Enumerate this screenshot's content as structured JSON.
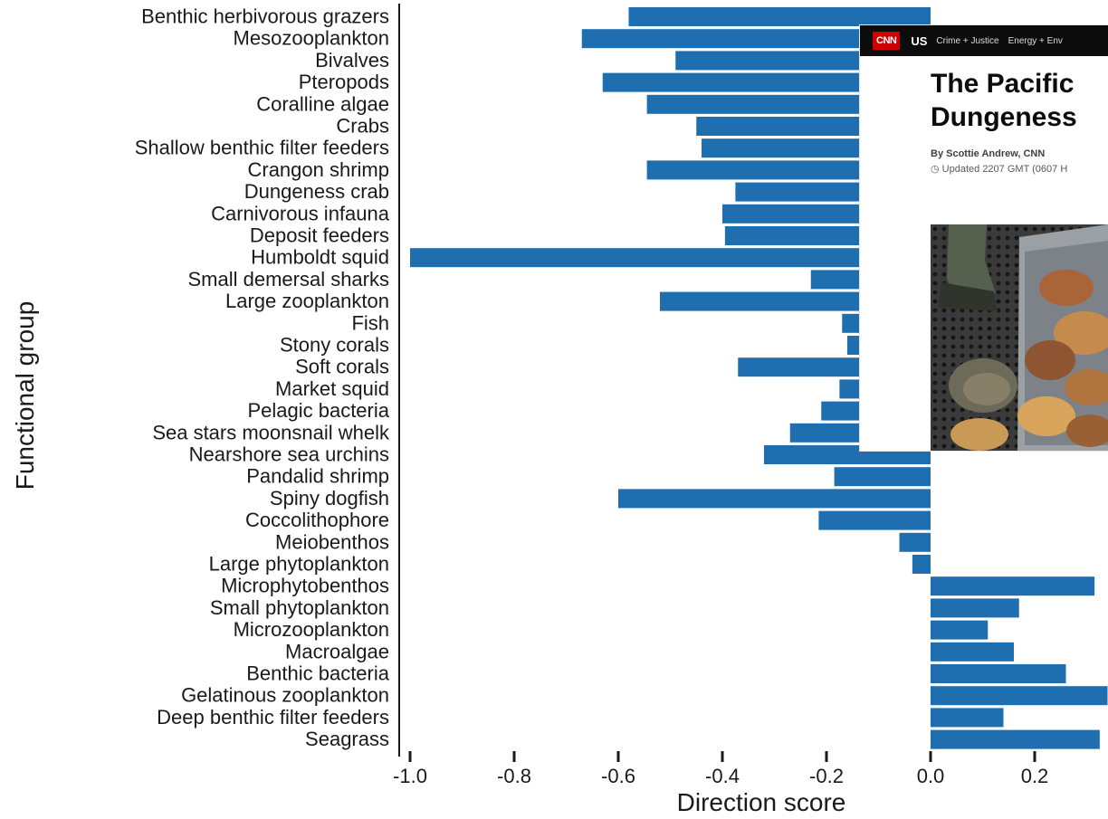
{
  "chart_data": {
    "type": "bar",
    "orientation": "horizontal",
    "ylabel": "Functional group",
    "xlabel": "Direction score",
    "xlim": [
      -1.0,
      0.35
    ],
    "xticks": [
      "-1.0",
      "-0.8",
      "-0.6",
      "-0.4",
      "-0.2",
      "0.0",
      "0.2"
    ],
    "grid": false,
    "bar_color": "#1f6fb0",
    "categories": [
      "Benthic herbivorous grazers",
      "Mesozooplankton",
      "Bivalves",
      "Pteropods",
      "Coralline algae",
      "Crabs",
      "Shallow benthic filter feeders",
      "Crangon shrimp",
      "Dungeness crab",
      "Carnivorous infauna",
      "Deposit feeders",
      "Humboldt squid",
      "Small demersal sharks",
      "Large zooplankton",
      "Fish",
      "Stony corals",
      "Soft corals",
      "Market squid",
      "Pelagic bacteria",
      "Sea stars moonsnail whelk",
      "Nearshore sea urchins",
      "Pandalid shrimp",
      "Spiny dogfish",
      "Coccolithophore",
      "Meiobenthos",
      "Large phytoplankton",
      "Microphytobenthos",
      "Small phytoplankton",
      "Microzooplankton",
      "Macroalgae",
      "Benthic bacteria",
      "Gelatinous zooplankton",
      "Deep benthic filter feeders",
      "Seagrass"
    ],
    "values": [
      -0.58,
      -0.67,
      -0.49,
      -0.63,
      -0.545,
      -0.45,
      -0.44,
      -0.545,
      -0.375,
      -0.4,
      -0.395,
      -1.0,
      -0.23,
      -0.52,
      -0.17,
      -0.16,
      -0.37,
      -0.175,
      -0.21,
      -0.27,
      -0.32,
      -0.185,
      -0.6,
      -0.215,
      -0.06,
      -0.035,
      0.315,
      0.17,
      0.11,
      0.16,
      0.26,
      0.34,
      0.14,
      0.325
    ]
  },
  "article": {
    "logo": "CNN",
    "section": "US",
    "nav": [
      "Crime + Justice",
      "Energy + Env"
    ],
    "headline_line1": "The Pacific",
    "headline_line2": "Dungeness",
    "byline": "By Scottie Andrew, CNN",
    "updated": "Updated 2207 GMT (0607 H"
  }
}
